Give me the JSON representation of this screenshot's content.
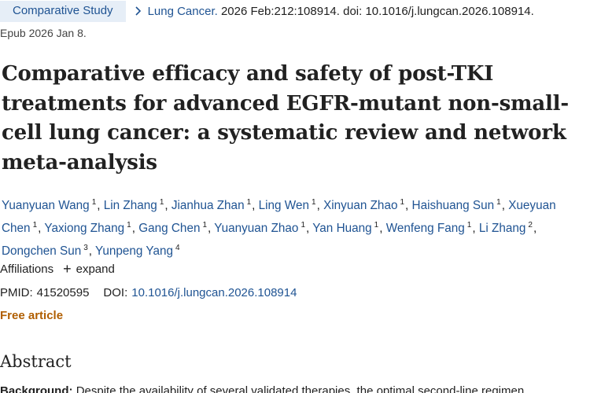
{
  "header": {
    "article_type": "Comparative Study",
    "journal": "Lung Cancer.",
    "citation": "2026 Feb:212:108914. doi: 10.1016/j.lungcan.2026.108914.",
    "epub": "Epub 2026 Jan 8."
  },
  "title": "Comparative efficacy and safety of post-TKI treatments for advanced EGFR-mutant non-small-cell lung cancer: a systematic review and network meta-analysis",
  "authors": [
    {
      "name": "Yuanyuan Wang",
      "aff": "1"
    },
    {
      "name": "Lin Zhang",
      "aff": "1"
    },
    {
      "name": "Jianhua Zhan",
      "aff": "1"
    },
    {
      "name": "Ling Wen",
      "aff": "1"
    },
    {
      "name": "Xinyuan Zhao",
      "aff": "1"
    },
    {
      "name": "Haishuang Sun",
      "aff": "1"
    },
    {
      "name": "Xueyuan Chen",
      "aff": "1"
    },
    {
      "name": "Yaxiong Zhang",
      "aff": "1"
    },
    {
      "name": "Gang Chen",
      "aff": "1"
    },
    {
      "name": "Yuanyuan Zhao",
      "aff": "1"
    },
    {
      "name": "Yan Huang",
      "aff": "1"
    },
    {
      "name": "Wenfeng Fang",
      "aff": "1"
    },
    {
      "name": "Li Zhang",
      "aff": "2"
    },
    {
      "name": "Dongchen Sun",
      "aff": "3"
    },
    {
      "name": "Yunpeng Yang",
      "aff": "4"
    }
  ],
  "affiliations": {
    "label": "Affiliations",
    "expand_symbol": "+",
    "expand_label": "expand"
  },
  "ids": {
    "pmid_label": "PMID:",
    "pmid": "41520595",
    "doi_label": "DOI:",
    "doi": "10.1016/j.lungcan.2026.108914"
  },
  "free_article": "Free article",
  "abstract": {
    "heading": "Abstract",
    "background_label": "Background:",
    "background_text": "Despite the availability of several validated therapies, the optimal second-line regimen"
  },
  "colors": {
    "link": "#205493",
    "badge_bg": "#e6eef7",
    "free_article": "#b05e00",
    "text": "#212121"
  },
  "icons": {
    "breadcrumb_separator": "chevron-right-icon",
    "expand": "plus-icon"
  }
}
